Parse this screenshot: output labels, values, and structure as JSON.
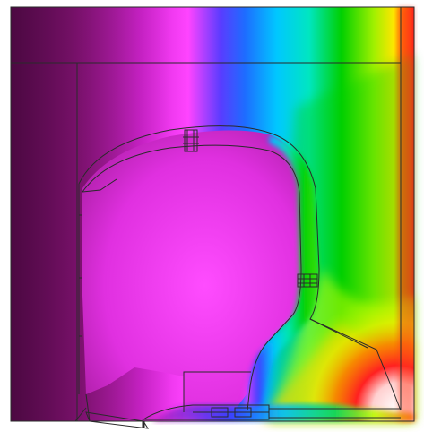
{
  "figure": {
    "kind": "thermal-simulation-isotherm-plot",
    "colormap": [
      "#5a0a4a",
      "#7a1070",
      "#c81ec8",
      "#ff3cff",
      "#3a3cff",
      "#00c8ff",
      "#00f0d0",
      "#00d000",
      "#a0ff00",
      "#ffff00",
      "#ff8000",
      "#ff1010",
      "#ffffff"
    ],
    "outline_color": "#2a2a2a"
  }
}
